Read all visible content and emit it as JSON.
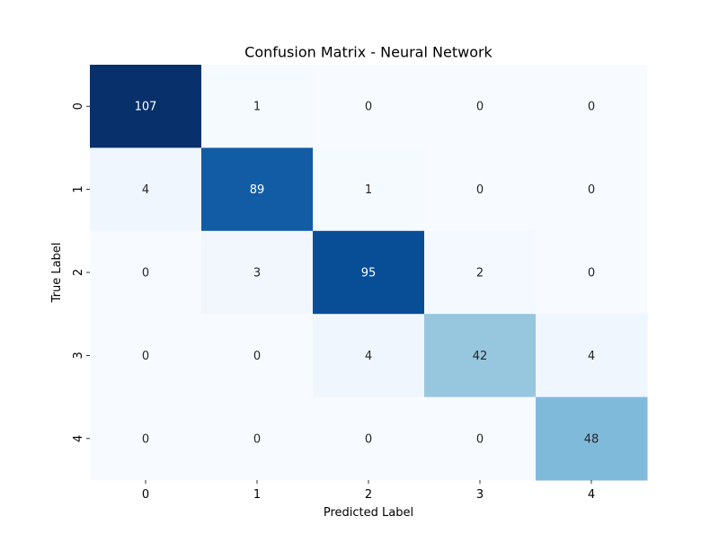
{
  "chart_data": {
    "type": "heatmap",
    "title": "Confusion Matrix - Neural Network",
    "xlabel": "Predicted Label",
    "ylabel": "True Label",
    "x_categories": [
      "0",
      "1",
      "2",
      "3",
      "4"
    ],
    "y_categories": [
      "0",
      "1",
      "2",
      "3",
      "4"
    ],
    "values": [
      [
        107,
        1,
        0,
        0,
        0
      ],
      [
        4,
        89,
        1,
        0,
        0
      ],
      [
        0,
        3,
        95,
        2,
        0
      ],
      [
        0,
        0,
        4,
        42,
        4
      ],
      [
        0,
        0,
        0,
        0,
        48
      ]
    ],
    "colormap": "Blues",
    "vmin": 0,
    "vmax": 107,
    "colorbar": false,
    "annotations": true,
    "colors": {
      "low": "#f7fbff",
      "high": "#08306b",
      "dark_text": "#262626",
      "light_text": "#ffffff"
    }
  }
}
